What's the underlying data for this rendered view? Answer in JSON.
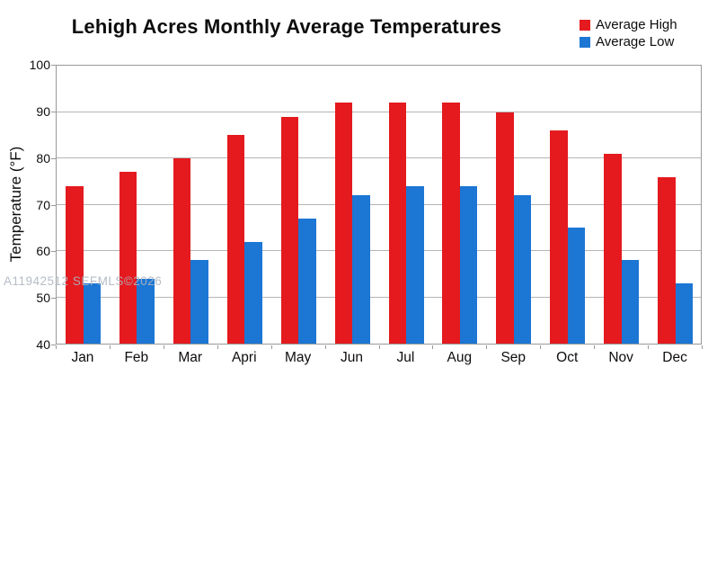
{
  "watermark": "A11942512 SEFMLS©2026",
  "colors": {
    "high": "#e41a1f",
    "low": "#1c76d4",
    "grid": "#b5b5b5",
    "axis": "#999999",
    "watermark": "#aeb5bf"
  },
  "legend": {
    "items": [
      {
        "label": "Average High",
        "color": "#e41a1f"
      },
      {
        "label": "Average Low",
        "color": "#1c76d4"
      }
    ]
  },
  "chart_data": {
    "type": "bar",
    "title": "Lehigh Acres Monthly Average Temperatures",
    "categories": [
      "Jan",
      "Feb",
      "Mar",
      "Apri",
      "May",
      "Jun",
      "Jul",
      "Aug",
      "Sep",
      "Oct",
      "Nov",
      "Dec"
    ],
    "series": [
      {
        "name": "Average High",
        "color": "#e41a1f",
        "values": [
          74,
          77,
          80,
          85,
          89,
          92,
          92,
          92,
          90,
          86,
          81,
          76
        ]
      },
      {
        "name": "Average Low",
        "color": "#1c76d4",
        "values": [
          53,
          54,
          58,
          62,
          67,
          72,
          74,
          74,
          72,
          65,
          58,
          53
        ]
      }
    ],
    "xlabel": "",
    "ylabel": "Temperature (°F)",
    "ylim": [
      40,
      100
    ],
    "ytick_step": 10,
    "grid": true,
    "legend_position": "top-right"
  }
}
